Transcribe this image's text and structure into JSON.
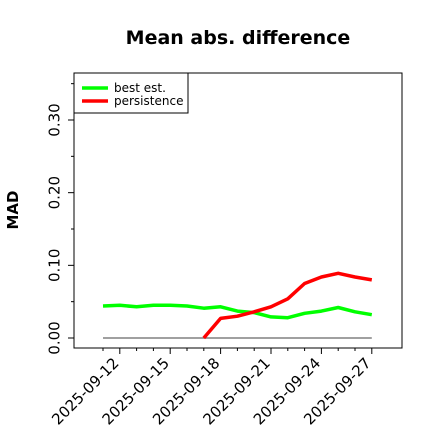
{
  "chart_data": {
    "type": "line",
    "title": "Mean abs. difference",
    "xlabel": "",
    "ylabel": "MAD",
    "x": [
      "2025-09-11",
      "2025-09-12",
      "2025-09-13",
      "2025-09-14",
      "2025-09-15",
      "2025-09-16",
      "2025-09-17",
      "2025-09-18",
      "2025-09-19",
      "2025-09-20",
      "2025-09-21",
      "2025-09-22",
      "2025-09-23",
      "2025-09-24",
      "2025-09-25",
      "2025-09-26",
      "2025-09-27"
    ],
    "x_tick_labels": [
      "2025-09-12",
      "2025-09-15",
      "2025-09-18",
      "2025-09-21",
      "2025-09-24",
      "2025-09-27"
    ],
    "ylim": [
      0,
      0.35
    ],
    "y_ticks": [
      0.0,
      0.1,
      0.2,
      0.3
    ],
    "y_tick_labels": [
      "0.00",
      "0.10",
      "0.20",
      "0.30"
    ],
    "y_minor_ticks": [
      0.05,
      0.15,
      0.25,
      0.35
    ],
    "grid": false,
    "legend_position": "top-left",
    "series": [
      {
        "name": "best est.",
        "color": "#00ff00",
        "values": [
          0.044,
          0.045,
          0.043,
          0.045,
          0.045,
          0.044,
          0.041,
          0.043,
          0.037,
          0.035,
          0.029,
          0.028,
          0.034,
          0.037,
          0.042,
          0.036,
          0.032
        ]
      },
      {
        "name": "persistence",
        "color": "#ff0000",
        "values": [
          null,
          null,
          null,
          null,
          null,
          null,
          0.0,
          0.027,
          0.03,
          0.036,
          0.043,
          0.054,
          0.075,
          0.084,
          0.089,
          0.084,
          0.08
        ]
      }
    ],
    "baseline": {
      "value": 0,
      "color": "#808080"
    }
  }
}
